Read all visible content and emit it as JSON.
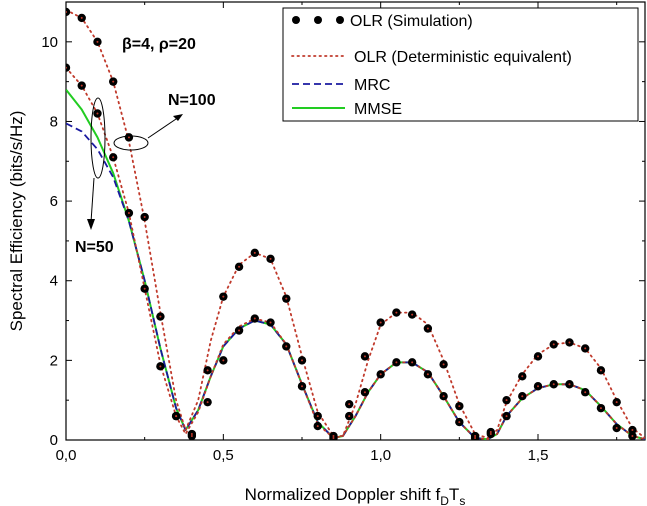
{
  "chart_data": {
    "type": "line",
    "xlabel": "Normalized Doppler shift f",
    "xlabel_sub1": "D",
    "xlabel_mid": "T",
    "xlabel_sub2": "s",
    "ylabel": "Spectral Efficiency (bits/s/Hz)",
    "xlim": [
      0,
      1.84
    ],
    "ylim": [
      0,
      11
    ],
    "xticks": [
      0.0,
      0.5,
      1.0,
      1.5
    ],
    "xtick_labels": [
      "0,0",
      "0,5",
      "1,0",
      "1,5"
    ],
    "yticks": [
      0,
      2,
      4,
      6,
      8,
      10
    ],
    "ytick_labels": [
      "0",
      "2",
      "4",
      "6",
      "8",
      "10"
    ],
    "legend_position": "top-right",
    "annotations": {
      "params": "β=4, ρ=20",
      "n100": "N=100",
      "n50": "N=50"
    },
    "series": [
      {
        "name": "OLR (Simulation)",
        "style": "markers",
        "color": "#000000",
        "x": [
          0.0,
          0.05,
          0.1,
          0.15,
          0.2,
          0.25,
          0.3,
          0.35,
          0.4,
          0.45,
          0.5,
          0.55,
          0.6,
          0.65,
          0.7,
          0.75,
          0.8,
          0.85,
          0.9,
          0.95,
          1.0,
          1.05,
          1.1,
          1.15,
          1.2,
          1.25,
          1.3,
          1.35,
          1.4,
          1.45,
          1.5,
          1.55,
          1.6,
          1.65,
          1.7,
          1.75,
          1.8,
          0.0,
          0.05,
          0.1,
          0.15,
          0.2,
          0.25,
          0.3,
          0.35,
          0.4,
          0.45,
          0.5,
          0.55,
          0.6,
          0.65,
          0.7,
          0.75,
          0.8,
          0.85,
          0.9,
          0.95,
          1.0,
          1.05,
          1.1,
          1.15,
          1.2,
          1.25,
          1.3,
          1.35,
          1.4,
          1.45,
          1.5,
          1.55,
          1.6,
          1.65,
          1.7,
          1.75,
          1.8
        ],
        "y": [
          10.75,
          10.6,
          10.0,
          9.0,
          7.6,
          5.6,
          3.1,
          0.6,
          0.15,
          1.75,
          3.6,
          4.35,
          4.7,
          4.55,
          3.55,
          2.0,
          0.6,
          0.1,
          0.9,
          2.1,
          2.95,
          3.2,
          3.15,
          2.8,
          1.9,
          0.85,
          0.1,
          0.2,
          1.0,
          1.6,
          2.1,
          2.4,
          2.45,
          2.3,
          1.75,
          0.95,
          0.25,
          9.35,
          8.9,
          8.2,
          7.1,
          5.7,
          3.8,
          1.85,
          0.6,
          0.1,
          0.95,
          2.0,
          2.75,
          3.05,
          2.95,
          2.35,
          1.35,
          0.35,
          0.05,
          0.6,
          1.2,
          1.65,
          1.95,
          1.95,
          1.65,
          1.1,
          0.45,
          0.05,
          0.15,
          0.6,
          1.1,
          1.35,
          1.4,
          1.4,
          1.2,
          0.8,
          0.3,
          0.1
        ]
      },
      {
        "name": "OLR (Deterministic equivalent)",
        "style": "dotted",
        "color": "#c0392b",
        "x": [
          0.0,
          0.05,
          0.1,
          0.15,
          0.2,
          0.25,
          0.3,
          0.35,
          0.38,
          0.42,
          0.46,
          0.5,
          0.55,
          0.6,
          0.65,
          0.7,
          0.75,
          0.8,
          0.85,
          0.88,
          0.92,
          0.96,
          1.0,
          1.05,
          1.1,
          1.15,
          1.2,
          1.25,
          1.3,
          1.34,
          1.37,
          1.4,
          1.45,
          1.5,
          1.55,
          1.6,
          1.65,
          1.7,
          1.75,
          1.8,
          1.84,
          null,
          0.0,
          0.05,
          0.1,
          0.15,
          0.2,
          0.25,
          0.3,
          0.35,
          0.38,
          0.42,
          0.46,
          0.5,
          0.55,
          0.6,
          0.65,
          0.7,
          0.75,
          0.8,
          0.85,
          0.88,
          0.92,
          0.96,
          1.0,
          1.05,
          1.1,
          1.15,
          1.2,
          1.25,
          1.3,
          1.34,
          1.37,
          1.4,
          1.45,
          1.5,
          1.55,
          1.6,
          1.65,
          1.7,
          1.75,
          1.8,
          1.84
        ],
        "y": [
          10.8,
          10.6,
          10.0,
          9.0,
          7.5,
          5.5,
          3.2,
          1.0,
          0.25,
          1.0,
          2.5,
          3.6,
          4.4,
          4.7,
          4.55,
          3.6,
          2.1,
          0.7,
          0.1,
          0.1,
          0.9,
          2.0,
          2.9,
          3.2,
          3.2,
          2.9,
          2.0,
          0.9,
          0.15,
          0.05,
          0.25,
          0.95,
          1.65,
          2.15,
          2.4,
          2.45,
          2.3,
          1.8,
          1.0,
          0.3,
          0.05,
          null,
          9.35,
          8.9,
          8.2,
          7.1,
          5.7,
          3.8,
          1.9,
          0.6,
          0.15,
          0.7,
          1.6,
          2.4,
          2.85,
          3.05,
          2.95,
          2.4,
          1.4,
          0.4,
          0.05,
          0.1,
          0.6,
          1.2,
          1.65,
          1.95,
          1.95,
          1.7,
          1.1,
          0.45,
          0.05,
          0.02,
          0.15,
          0.6,
          1.05,
          1.3,
          1.4,
          1.4,
          1.25,
          0.85,
          0.4,
          0.1,
          0.02
        ]
      },
      {
        "name": "MRC",
        "style": "dashed",
        "color": "#1a1aa0",
        "x": [
          0.0,
          0.05,
          0.1,
          0.15,
          0.2,
          0.25,
          0.3,
          0.35,
          0.38,
          0.42,
          0.46,
          0.5,
          0.55,
          0.6,
          0.65,
          0.7,
          0.75,
          0.8,
          0.85,
          0.88,
          0.92,
          0.96,
          1.0,
          1.05,
          1.1,
          1.15,
          1.2,
          1.25,
          1.3,
          1.34,
          1.37,
          1.4,
          1.45,
          1.5,
          1.55,
          1.6,
          1.65,
          1.7,
          1.75,
          1.8,
          1.84
        ],
        "y": [
          7.95,
          7.75,
          7.3,
          6.6,
          5.5,
          4.0,
          2.3,
          0.8,
          0.25,
          0.75,
          1.6,
          2.35,
          2.8,
          3.0,
          2.9,
          2.4,
          1.4,
          0.45,
          0.05,
          0.1,
          0.6,
          1.2,
          1.65,
          1.95,
          1.95,
          1.7,
          1.1,
          0.45,
          0.05,
          0.02,
          0.15,
          0.6,
          1.05,
          1.3,
          1.4,
          1.4,
          1.25,
          0.85,
          0.4,
          0.1,
          0.02
        ]
      },
      {
        "name": "MMSE",
        "style": "solid",
        "color": "#22cc22",
        "x": [
          0.0,
          0.05,
          0.1,
          0.15,
          0.2,
          0.25,
          0.3,
          0.35,
          0.38,
          0.42,
          0.46,
          0.5,
          0.55,
          0.6,
          0.65,
          0.7,
          0.75,
          0.8,
          0.85,
          0.88,
          0.92,
          0.96,
          1.0,
          1.05,
          1.1,
          1.15,
          1.2,
          1.25,
          1.3,
          1.34,
          1.37,
          1.4,
          1.45,
          1.5,
          1.55,
          1.6,
          1.65,
          1.7,
          1.75,
          1.8,
          1.84
        ],
        "y": [
          8.8,
          8.3,
          7.6,
          6.7,
          5.5,
          4.0,
          2.3,
          0.8,
          0.25,
          0.75,
          1.6,
          2.35,
          2.8,
          3.0,
          2.9,
          2.4,
          1.4,
          0.45,
          0.05,
          0.1,
          0.6,
          1.2,
          1.65,
          1.95,
          1.95,
          1.7,
          1.1,
          0.45,
          0.05,
          0.02,
          0.15,
          0.6,
          1.05,
          1.3,
          1.4,
          1.4,
          1.25,
          0.85,
          0.4,
          0.1,
          0.02
        ]
      }
    ]
  }
}
